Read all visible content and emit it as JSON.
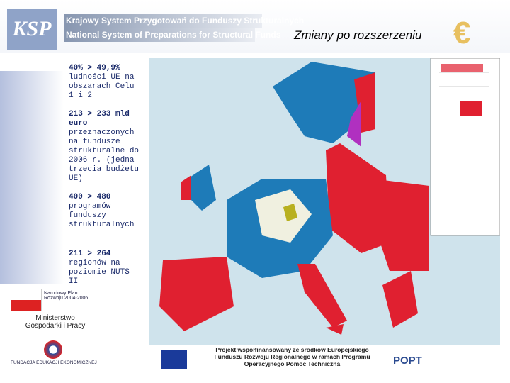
{
  "header": {
    "logo": "KSP",
    "title_pl": "Krajowy System Przygotowań do Funduszy Strukturalnych",
    "title_en": "National System of Preparations for Structural Funds"
  },
  "slide_title": "Zmiany po rozszerzeniu",
  "facts": [
    {
      "figure": "40% > 49,9%",
      "text": "ludności UE na obszarach Celu 1 i 2"
    },
    {
      "figure": "213 > 233 mld euro",
      "text": "przeznaczonych na fundusze strukturalne do 2006 r. (jedna trzecia budżetu UE)"
    },
    {
      "figure": "400 > 480",
      "text": "programów funduszy strukturalnych"
    },
    {
      "figure": "211 > 264",
      "text": "regionów na poziomie NUTS II"
    }
  ],
  "logos": {
    "npr": "Narodowy Plan Rozwoju 2004-2006",
    "ministry": "Ministerstwo Gospodarki i Pracy",
    "foundation": "FUNDACJA EDUKACJI EKONOMICZNEJ"
  },
  "footer": {
    "project": "Projekt współfinansowany ze środków Europejskiego Funduszu Rozwoju Regionalnego w ramach Programu Operacyjnego Pomoc Techniczna",
    "popt": "POPT"
  }
}
